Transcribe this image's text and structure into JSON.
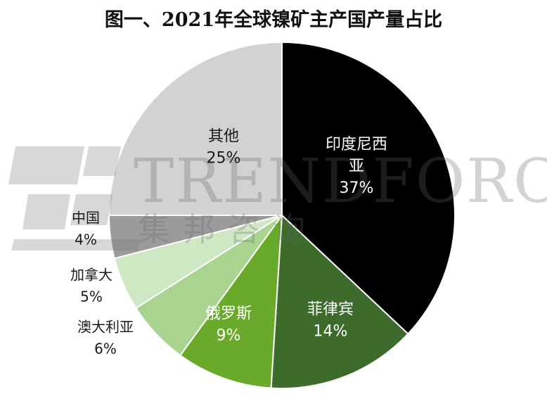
{
  "chart_data": {
    "type": "pie",
    "title": "图一、2021年全球镍矿主产国产量占比",
    "slices": [
      {
        "label": "印度尼西亚",
        "label_lines": [
          "印度尼西",
          "亚"
        ],
        "value": 37,
        "value_label": "37%",
        "color": "#000000",
        "text_color": "#ffffff"
      },
      {
        "label": "菲律宾",
        "label_lines": [
          "菲律宾"
        ],
        "value": 14,
        "value_label": "14%",
        "color": "#3d6b2c",
        "text_color": "#ffffff"
      },
      {
        "label": "俄罗斯",
        "label_lines": [
          "俄罗斯"
        ],
        "value": 9,
        "value_label": "9%",
        "color": "#6aaa2a",
        "text_color": "#ffffff"
      },
      {
        "label": "澳大利亚",
        "label_lines": [
          "澳大利亚"
        ],
        "value": 6,
        "value_label": "6%",
        "color": "#a8d490",
        "text_color": "#1a1a1a"
      },
      {
        "label": "加拿大",
        "label_lines": [
          "加拿大"
        ],
        "value": 5,
        "value_label": "5%",
        "color": "#cfe8c4",
        "text_color": "#1a1a1a"
      },
      {
        "label": "中国",
        "label_lines": [
          "中国"
        ],
        "value": 4,
        "value_label": "4%",
        "color": "#9b9b9b",
        "text_color": "#1a1a1a"
      },
      {
        "label": "其他",
        "label_lines": [
          "其他"
        ],
        "value": 25,
        "value_label": "25%",
        "color": "#d2d2d2",
        "text_color": "#1a1a1a"
      }
    ]
  },
  "watermark": {
    "brand": "TRENDFORCE",
    "chinese": "集邦咨询",
    "color": "#8a8a8a"
  }
}
